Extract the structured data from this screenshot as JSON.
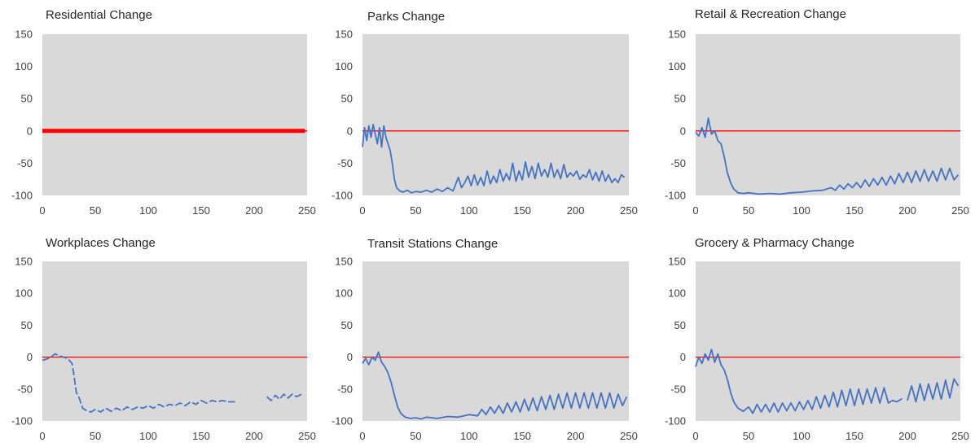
{
  "chart_data": [
    {
      "type": "line",
      "title": "Residential Change",
      "xlim": [
        0,
        250
      ],
      "ylim": [
        -100,
        150
      ],
      "xticks": [
        "0",
        "50",
        "100",
        "150",
        "200",
        "250"
      ],
      "yticks": [
        "150",
        "100",
        "50",
        "0",
        "-50",
        "-100"
      ],
      "plot_background": "#d9d9d9",
      "grid": false,
      "legend": "none",
      "baseline": {
        "y": 0,
        "color": "#ff0000"
      },
      "series": [
        {
          "color": "#ff0000",
          "thick": true,
          "x": [
            0,
            50,
            100,
            150,
            200,
            248
          ],
          "y": [
            0,
            0,
            0,
            0,
            0,
            0
          ]
        }
      ]
    },
    {
      "type": "line",
      "title": "Parks Change",
      "xlim": [
        0,
        250
      ],
      "ylim": [
        -100,
        150
      ],
      "xticks": [
        "0",
        "50",
        "100",
        "150",
        "200",
        "250"
      ],
      "yticks": [
        "150",
        "100",
        "50",
        "0",
        "-50",
        "-100"
      ],
      "plot_background": "#d9d9d9",
      "grid": false,
      "legend": "none",
      "baseline": {
        "y": 0,
        "color": "#ff0000"
      },
      "series": [
        {
          "color": "#4472c4",
          "x": [
            0,
            2,
            4,
            6,
            8,
            10,
            12,
            14,
            16,
            18,
            20,
            22,
            24,
            26,
            28,
            30,
            32,
            35,
            38,
            42,
            46,
            50,
            55,
            60,
            65,
            70,
            75,
            80,
            85,
            90,
            93,
            96,
            99,
            102,
            105,
            108,
            111,
            114,
            117,
            120,
            123,
            126,
            129,
            132,
            135,
            138,
            141,
            144,
            147,
            150,
            153,
            156,
            159,
            162,
            165,
            168,
            171,
            174,
            177,
            180,
            183,
            186,
            189,
            192,
            195,
            198,
            201,
            204,
            207,
            210,
            213,
            216,
            219,
            222,
            225,
            228,
            231,
            234,
            237,
            240,
            243,
            246
          ],
          "y": [
            -25,
            5,
            -15,
            8,
            -10,
            10,
            -5,
            -20,
            5,
            -25,
            8,
            -10,
            -20,
            -30,
            -50,
            -75,
            -88,
            -93,
            -95,
            -92,
            -96,
            -94,
            -95,
            -92,
            -95,
            -90,
            -94,
            -88,
            -93,
            -72,
            -88,
            -80,
            -70,
            -85,
            -68,
            -84,
            -72,
            -85,
            -62,
            -82,
            -70,
            -80,
            -60,
            -78,
            -66,
            -76,
            -50,
            -78,
            -62,
            -76,
            -48,
            -72,
            -55,
            -74,
            -50,
            -70,
            -60,
            -72,
            -50,
            -72,
            -60,
            -74,
            -52,
            -72,
            -65,
            -70,
            -62,
            -75,
            -68,
            -72,
            -60,
            -76,
            -64,
            -78,
            -62,
            -78,
            -68,
            -80,
            -74,
            -80,
            -68,
            -72
          ]
        }
      ]
    },
    {
      "type": "line",
      "title": "Retail & Recreation Change",
      "xlim": [
        0,
        250
      ],
      "ylim": [
        -100,
        150
      ],
      "xticks": [
        "0",
        "50",
        "100",
        "150",
        "200",
        "250"
      ],
      "yticks": [
        "150",
        "100",
        "50",
        "0",
        "-50",
        "-100"
      ],
      "plot_background": "#d9d9d9",
      "grid": false,
      "legend": "none",
      "baseline": {
        "y": 0,
        "color": "#ff0000"
      },
      "series": [
        {
          "color": "#4472c4",
          "x": [
            0,
            3,
            6,
            9,
            12,
            15,
            18,
            21,
            24,
            27,
            30,
            33,
            36,
            40,
            45,
            50,
            60,
            70,
            80,
            90,
            100,
            110,
            120,
            128,
            132,
            136,
            140,
            144,
            148,
            152,
            156,
            160,
            164,
            168,
            172,
            176,
            180,
            184,
            188,
            192,
            196,
            200,
            204,
            208,
            212,
            216,
            220,
            224,
            228,
            232,
            236,
            240,
            244,
            248
          ],
          "y": [
            -2,
            -8,
            5,
            -10,
            20,
            -5,
            0,
            -15,
            -20,
            -40,
            -65,
            -80,
            -90,
            -96,
            -97,
            -96,
            -98,
            -97,
            -98,
            -96,
            -95,
            -93,
            -92,
            -88,
            -92,
            -84,
            -90,
            -82,
            -88,
            -80,
            -88,
            -76,
            -86,
            -74,
            -84,
            -72,
            -84,
            -70,
            -82,
            -66,
            -80,
            -64,
            -80,
            -62,
            -78,
            -60,
            -78,
            -62,
            -78,
            -58,
            -76,
            -58,
            -76,
            -68
          ]
        }
      ]
    },
    {
      "type": "line",
      "title": "Workplaces Change",
      "xlim": [
        0,
        250
      ],
      "ylim": [
        -100,
        150
      ],
      "xticks": [
        "0",
        "50",
        "100",
        "150",
        "200",
        "250"
      ],
      "yticks": [
        "150",
        "100",
        "50",
        "0",
        "-50",
        "-100"
      ],
      "plot_background": "#d9d9d9",
      "grid": false,
      "legend": "none",
      "baseline": {
        "y": 0,
        "color": "#ff0000"
      },
      "series": [
        {
          "color": "#4472c4",
          "dashed": true,
          "x": [
            0,
            4,
            8,
            12,
            16,
            20,
            24,
            28,
            30,
            32,
            35,
            38,
            42,
            46,
            50,
            55,
            60,
            65,
            70,
            75,
            80,
            85,
            90,
            95,
            100,
            105,
            110,
            115,
            120,
            125,
            130,
            135,
            140,
            145,
            150,
            155,
            160,
            165,
            170,
            175,
            182
          ],
          "y": [
            -5,
            -3,
            0,
            5,
            2,
            0,
            -2,
            -10,
            -30,
            -55,
            -65,
            -80,
            -84,
            -86,
            -82,
            -86,
            -80,
            -85,
            -80,
            -84,
            -78,
            -82,
            -78,
            -80,
            -76,
            -80,
            -74,
            -78,
            -74,
            -76,
            -72,
            -76,
            -70,
            -74,
            -68,
            -72,
            -68,
            -70,
            -68,
            -70,
            -70
          ]
        },
        {
          "color": "#4472c4",
          "dashed": true,
          "x": [
            212,
            216,
            220,
            224,
            228,
            232,
            236,
            240,
            245
          ],
          "y": [
            -62,
            -68,
            -60,
            -66,
            -58,
            -64,
            -58,
            -62,
            -58
          ]
        }
      ]
    },
    {
      "type": "line",
      "title": "Transit Stations Change",
      "xlim": [
        0,
        250
      ],
      "ylim": [
        -100,
        150
      ],
      "xticks": [
        "0",
        "50",
        "100",
        "150",
        "200",
        "250"
      ],
      "yticks": [
        "150",
        "100",
        "50",
        "0",
        "-50",
        "-100"
      ],
      "plot_background": "#d9d9d9",
      "grid": false,
      "legend": "none",
      "baseline": {
        "y": 0,
        "color": "#ff0000"
      },
      "series": [
        {
          "color": "#4472c4",
          "x": [
            0,
            3,
            6,
            9,
            12,
            15,
            18,
            21,
            24,
            27,
            30,
            33,
            36,
            40,
            45,
            50,
            55,
            60,
            70,
            80,
            90,
            100,
            108,
            112,
            116,
            120,
            124,
            128,
            132,
            136,
            140,
            144,
            148,
            152,
            156,
            160,
            164,
            168,
            172,
            176,
            180,
            184,
            188,
            192,
            196,
            200,
            204,
            208,
            212,
            216,
            220,
            224,
            228,
            232,
            236,
            240,
            244,
            248
          ],
          "y": [
            -10,
            -2,
            -12,
            0,
            -5,
            8,
            -8,
            -15,
            -25,
            -40,
            -60,
            -78,
            -88,
            -94,
            -96,
            -95,
            -97,
            -94,
            -96,
            -93,
            -94,
            -90,
            -92,
            -82,
            -90,
            -78,
            -88,
            -76,
            -88,
            -72,
            -86,
            -70,
            -86,
            -66,
            -84,
            -64,
            -84,
            -62,
            -82,
            -60,
            -82,
            -58,
            -80,
            -56,
            -80,
            -56,
            -80,
            -56,
            -80,
            -56,
            -80,
            -56,
            -80,
            -56,
            -80,
            -58,
            -76,
            -62
          ]
        }
      ]
    },
    {
      "type": "line",
      "title": "Grocery & Pharmacy Change",
      "xlim": [
        0,
        250
      ],
      "ylim": [
        -100,
        150
      ],
      "xticks": [
        "0",
        "50",
        "100",
        "150",
        "200",
        "250"
      ],
      "yticks": [
        "150",
        "100",
        "50",
        "0",
        "-50",
        "-100"
      ],
      "plot_background": "#d9d9d9",
      "grid": false,
      "legend": "none",
      "baseline": {
        "y": 0,
        "color": "#ff0000"
      },
      "series": [
        {
          "color": "#4472c4",
          "x": [
            0,
            3,
            6,
            9,
            12,
            15,
            18,
            21,
            24,
            27,
            30,
            33,
            36,
            40,
            45,
            50,
            54,
            58,
            62,
            66,
            70,
            74,
            78,
            82,
            86,
            90,
            94,
            98,
            102,
            106,
            110,
            114,
            118,
            122,
            126,
            130,
            134,
            138,
            142,
            146,
            150,
            154,
            158,
            162,
            166,
            170,
            174,
            178,
            182,
            186,
            190,
            195
          ],
          "y": [
            -15,
            0,
            -10,
            5,
            -5,
            12,
            -8,
            5,
            -12,
            -20,
            -35,
            -55,
            -70,
            -80,
            -85,
            -78,
            -88,
            -74,
            -86,
            -74,
            -86,
            -72,
            -86,
            -72,
            -84,
            -72,
            -84,
            -70,
            -82,
            -68,
            -82,
            -62,
            -80,
            -60,
            -78,
            -55,
            -78,
            -52,
            -76,
            -50,
            -76,
            -50,
            -74,
            -50,
            -72,
            -48,
            -72,
            -48,
            -72,
            -68,
            -70,
            -65
          ]
        },
        {
          "color": "#4472c4",
          "x": [
            200,
            204,
            208,
            212,
            216,
            220,
            224,
            228,
            232,
            236,
            240,
            244,
            248
          ],
          "y": [
            -68,
            -45,
            -70,
            -42,
            -68,
            -42,
            -66,
            -40,
            -66,
            -36,
            -64,
            -34,
            -45
          ]
        }
      ]
    }
  ]
}
